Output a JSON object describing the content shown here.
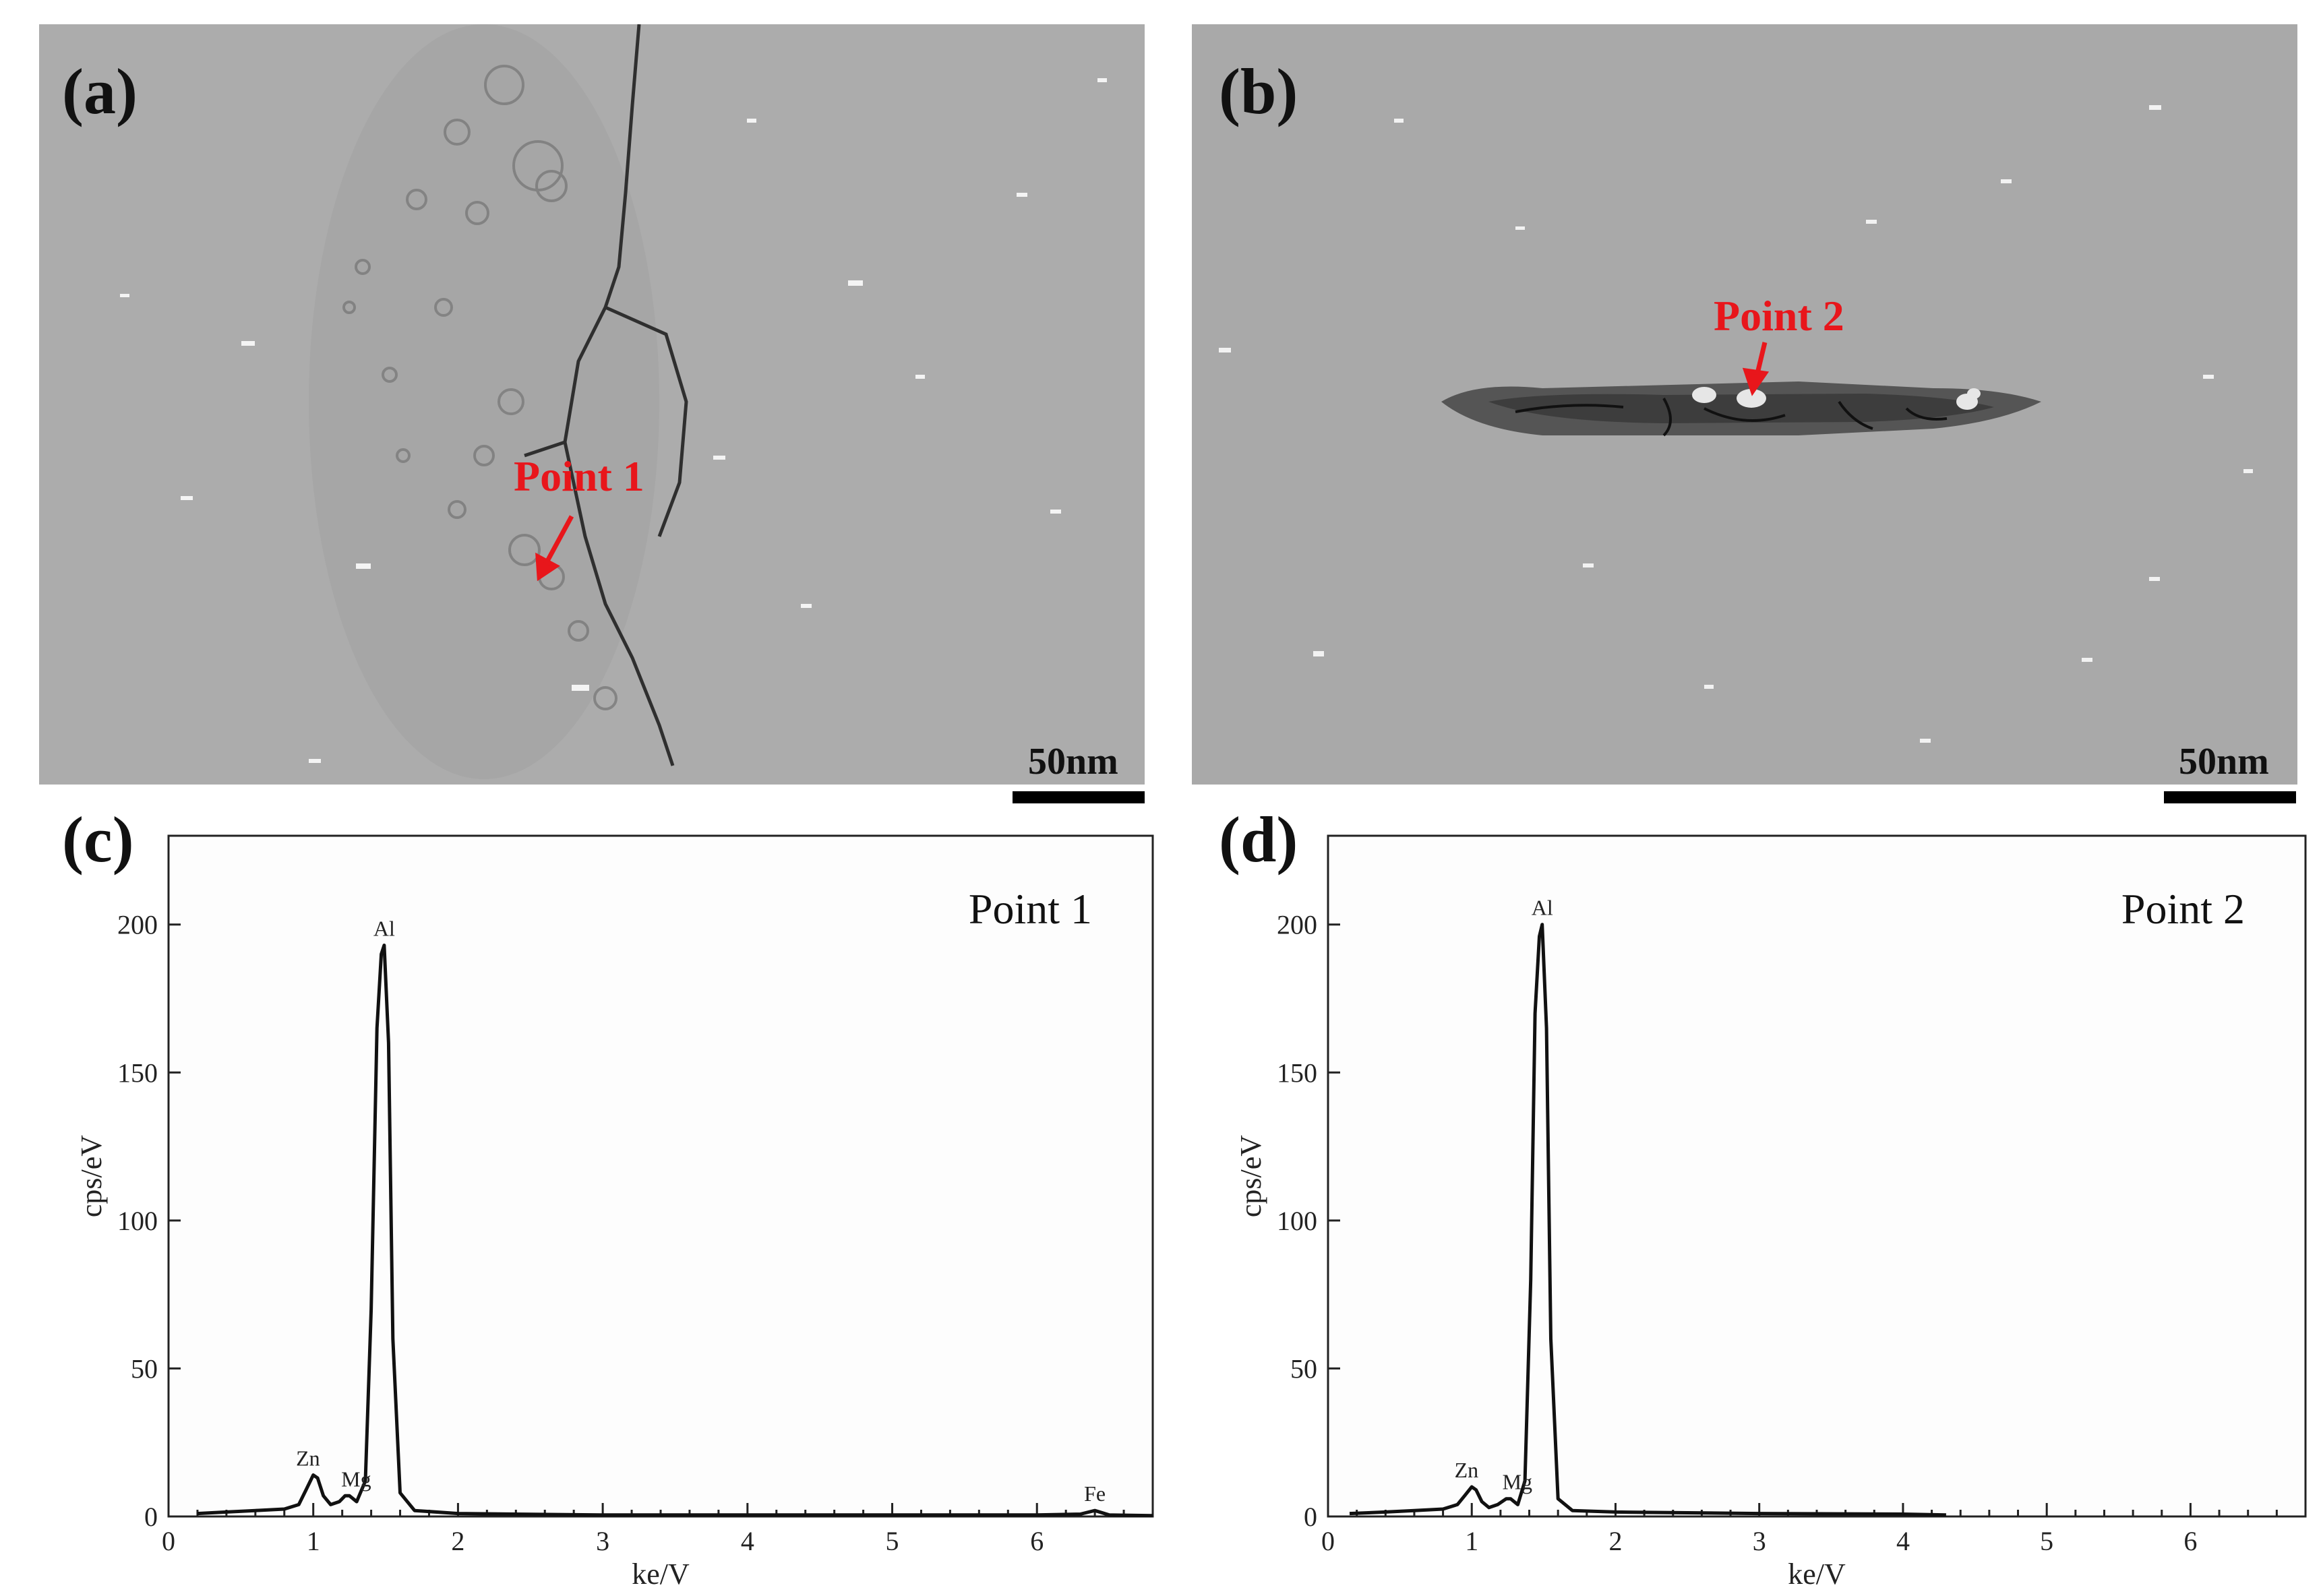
{
  "figure": {
    "panels": [
      {
        "id": "a",
        "label": "(a)",
        "annotation": "Point 1",
        "scale_bar": "50nm"
      },
      {
        "id": "b",
        "label": "(b)",
        "annotation": "Point 2",
        "scale_bar": "50nm"
      },
      {
        "id": "c",
        "label": "(c)"
      },
      {
        "id": "d",
        "label": "(d)"
      }
    ]
  },
  "chart_data": [
    {
      "type": "line",
      "panel": "(c)",
      "title": "Point 1",
      "xlabel": "ke/V",
      "ylabel": "cps/eV",
      "xlim": [
        0,
        6.8
      ],
      "ylim": [
        0,
        230
      ],
      "xticks": [
        0,
        1,
        2,
        3,
        4,
        5,
        6
      ],
      "yticks": [
        0,
        50,
        100,
        150,
        200
      ],
      "peaks": [
        {
          "element": "Zn",
          "x": 1.01,
          "y": 14
        },
        {
          "element": "Mg",
          "x": 1.25,
          "y": 7
        },
        {
          "element": "Al",
          "x": 1.49,
          "y": 193
        },
        {
          "element": "Fe",
          "x": 6.4,
          "y": 2
        }
      ],
      "x": [
        0.2,
        0.4,
        0.6,
        0.8,
        0.9,
        0.95,
        1.0,
        1.03,
        1.07,
        1.12,
        1.18,
        1.22,
        1.25,
        1.3,
        1.36,
        1.4,
        1.44,
        1.47,
        1.49,
        1.52,
        1.55,
        1.6,
        1.7,
        2.0,
        3.0,
        4.0,
        5.0,
        6.0,
        6.3,
        6.4,
        6.5,
        6.8
      ],
      "y": [
        1,
        1.5,
        2,
        2.5,
        4,
        9,
        14,
        13,
        7,
        4,
        5,
        7,
        7,
        5,
        12,
        70,
        165,
        190,
        193,
        160,
        60,
        8,
        2,
        1,
        0.5,
        0.5,
        0.5,
        0.5,
        0.8,
        2,
        0.5,
        0.3
      ]
    },
    {
      "type": "line",
      "panel": "(d)",
      "title": "Point 2",
      "xlabel": "ke/V",
      "ylabel": "cps/eV",
      "xlim": [
        0,
        6.8
      ],
      "ylim": [
        0,
        230
      ],
      "xticks": [
        0,
        1,
        2,
        3,
        4,
        5,
        6
      ],
      "yticks": [
        0,
        50,
        100,
        150,
        200
      ],
      "peaks": [
        {
          "element": "Zn",
          "x": 1.01,
          "y": 10
        },
        {
          "element": "Mg",
          "x": 1.27,
          "y": 6
        },
        {
          "element": "Al",
          "x": 1.49,
          "y": 200
        }
      ],
      "x": [
        0.15,
        0.4,
        0.6,
        0.8,
        0.9,
        0.95,
        1.0,
        1.03,
        1.07,
        1.12,
        1.18,
        1.24,
        1.27,
        1.32,
        1.37,
        1.41,
        1.44,
        1.47,
        1.49,
        1.52,
        1.55,
        1.6,
        1.7,
        2.0,
        3.0,
        4.0,
        4.3
      ],
      "y": [
        1,
        1.5,
        2,
        2.5,
        4,
        7,
        10,
        9,
        5,
        3,
        4,
        6,
        6,
        4,
        12,
        80,
        170,
        196,
        200,
        165,
        60,
        6,
        2,
        1.5,
        1,
        0.8,
        0.5
      ]
    }
  ]
}
